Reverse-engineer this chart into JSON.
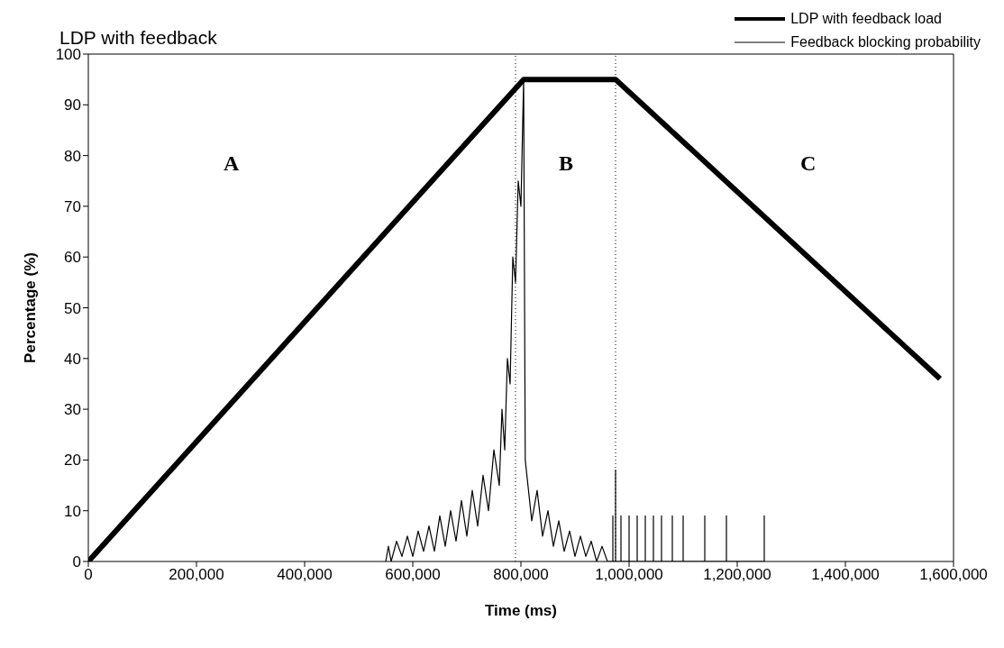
{
  "chart_data": {
    "type": "line",
    "title": "LDP with feedback",
    "xlabel": "Time (ms)",
    "ylabel": "Percentage (%)",
    "xlim": [
      0,
      1600000
    ],
    "xticks": [
      0,
      {
        "value": 200000,
        "label": "200,000"
      },
      {
        "value": 400000,
        "label": "400,000"
      },
      {
        "value": 600000,
        "label": "600,000"
      },
      {
        "value": 800000,
        "label": "800,000"
      },
      {
        "value": 1000000,
        "label": "1,000,000"
      },
      {
        "value": 1200000,
        "label": "1,200,000"
      },
      {
        "value": 1400000,
        "label": "1,400,000"
      },
      {
        "value": 1600000,
        "label": "1,600,000"
      }
    ],
    "ylim": [
      0,
      100
    ],
    "yticks": [
      0,
      10,
      20,
      30,
      40,
      50,
      60,
      70,
      80,
      90,
      100
    ],
    "grid": false,
    "legend": "top right",
    "marker": "none",
    "series": [
      {
        "name": "LDP with feedback load",
        "color": "#000000",
        "x": [
          0,
          805000,
          975000,
          1575000
        ],
        "values": [
          0,
          95,
          95,
          36
        ]
      },
      {
        "name": "Feedback blocking probability",
        "color": "#000000",
        "x": [
          550000,
          555000,
          560000,
          570000,
          580000,
          590000,
          600000,
          610000,
          620000,
          630000,
          640000,
          650000,
          660000,
          670000,
          680000,
          690000,
          700000,
          710000,
          720000,
          730000,
          740000,
          750000,
          760000,
          765000,
          770000,
          775000,
          780000,
          785000,
          790000,
          795000,
          800000,
          805000,
          808000,
          812000,
          820000,
          830000,
          840000,
          850000,
          860000,
          870000,
          880000,
          890000,
          900000,
          910000,
          920000,
          930000,
          940000,
          950000,
          960000,
          970000,
          970000,
          970000,
          975000,
          975000,
          975000,
          985000,
          985000,
          985000,
          1000000,
          1000000,
          1000000,
          1015000,
          1015000,
          1015000,
          1030000,
          1030000,
          1030000,
          1045000,
          1045000,
          1045000,
          1060000,
          1060000,
          1060000,
          1080000,
          1080000,
          1080000,
          1100000,
          1100000,
          1100000,
          1140000,
          1140000,
          1140000,
          1180000,
          1180000,
          1180000,
          1250000,
          1250000,
          1250000
        ],
        "values": [
          0,
          3,
          0,
          4,
          1,
          5,
          1,
          6,
          2,
          7,
          2,
          9,
          3,
          10,
          4,
          12,
          5,
          14,
          7,
          17,
          10,
          22,
          15,
          30,
          22,
          40,
          35,
          60,
          55,
          75,
          70,
          95,
          20,
          16,
          8,
          14,
          5,
          10,
          3,
          8,
          2,
          6,
          1,
          5,
          1,
          4,
          0,
          3,
          0,
          0,
          9,
          0,
          0,
          18,
          0,
          0,
          9,
          0,
          0,
          9,
          0,
          0,
          9,
          0,
          0,
          9,
          0,
          0,
          9,
          0,
          0,
          9,
          0,
          0,
          9,
          0,
          0,
          9,
          0,
          0,
          9,
          0,
          0,
          9,
          0,
          0,
          9,
          0
        ]
      }
    ],
    "ref_lines": [
      {
        "axis": "x",
        "value": 790000,
        "line_style": "dotted",
        "color": "#000000"
      },
      {
        "axis": "x",
        "value": 975000,
        "line_style": "dotted",
        "color": "#000000"
      }
    ],
    "annotations": [
      "A",
      "B",
      "C"
    ]
  }
}
